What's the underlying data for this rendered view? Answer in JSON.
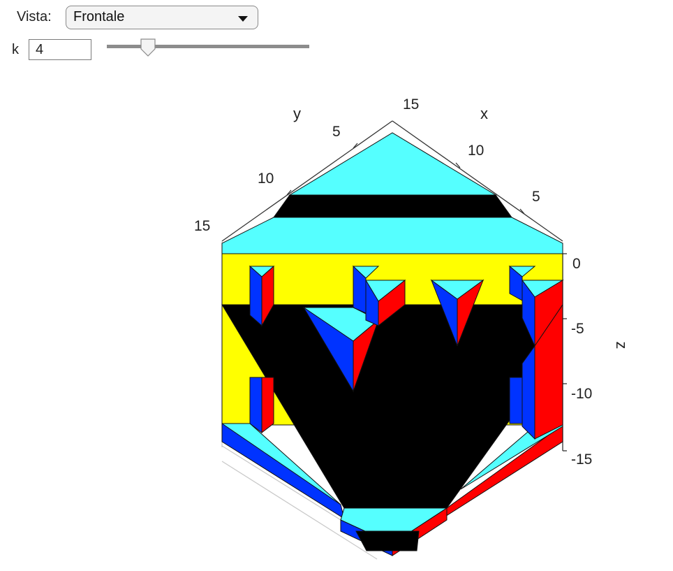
{
  "controls": {
    "view_label": "Vista:",
    "view_value": "Frontale",
    "k_label": "k",
    "k_value": "4",
    "slider_value": 4
  },
  "plot": {
    "x_axis": {
      "label": "x",
      "ticks": [
        "5",
        "10",
        "15"
      ]
    },
    "y_axis": {
      "label": "y",
      "ticks": [
        "5",
        "10",
        "15"
      ]
    },
    "z_axis": {
      "label": "z",
      "ticks": [
        "0",
        "-5",
        "-10",
        "-15"
      ]
    },
    "colors": {
      "cyan": "#55ffff",
      "yellow": "#ffff00",
      "blue": "#0033ff",
      "red": "#ff0000",
      "black": "#000000"
    }
  }
}
